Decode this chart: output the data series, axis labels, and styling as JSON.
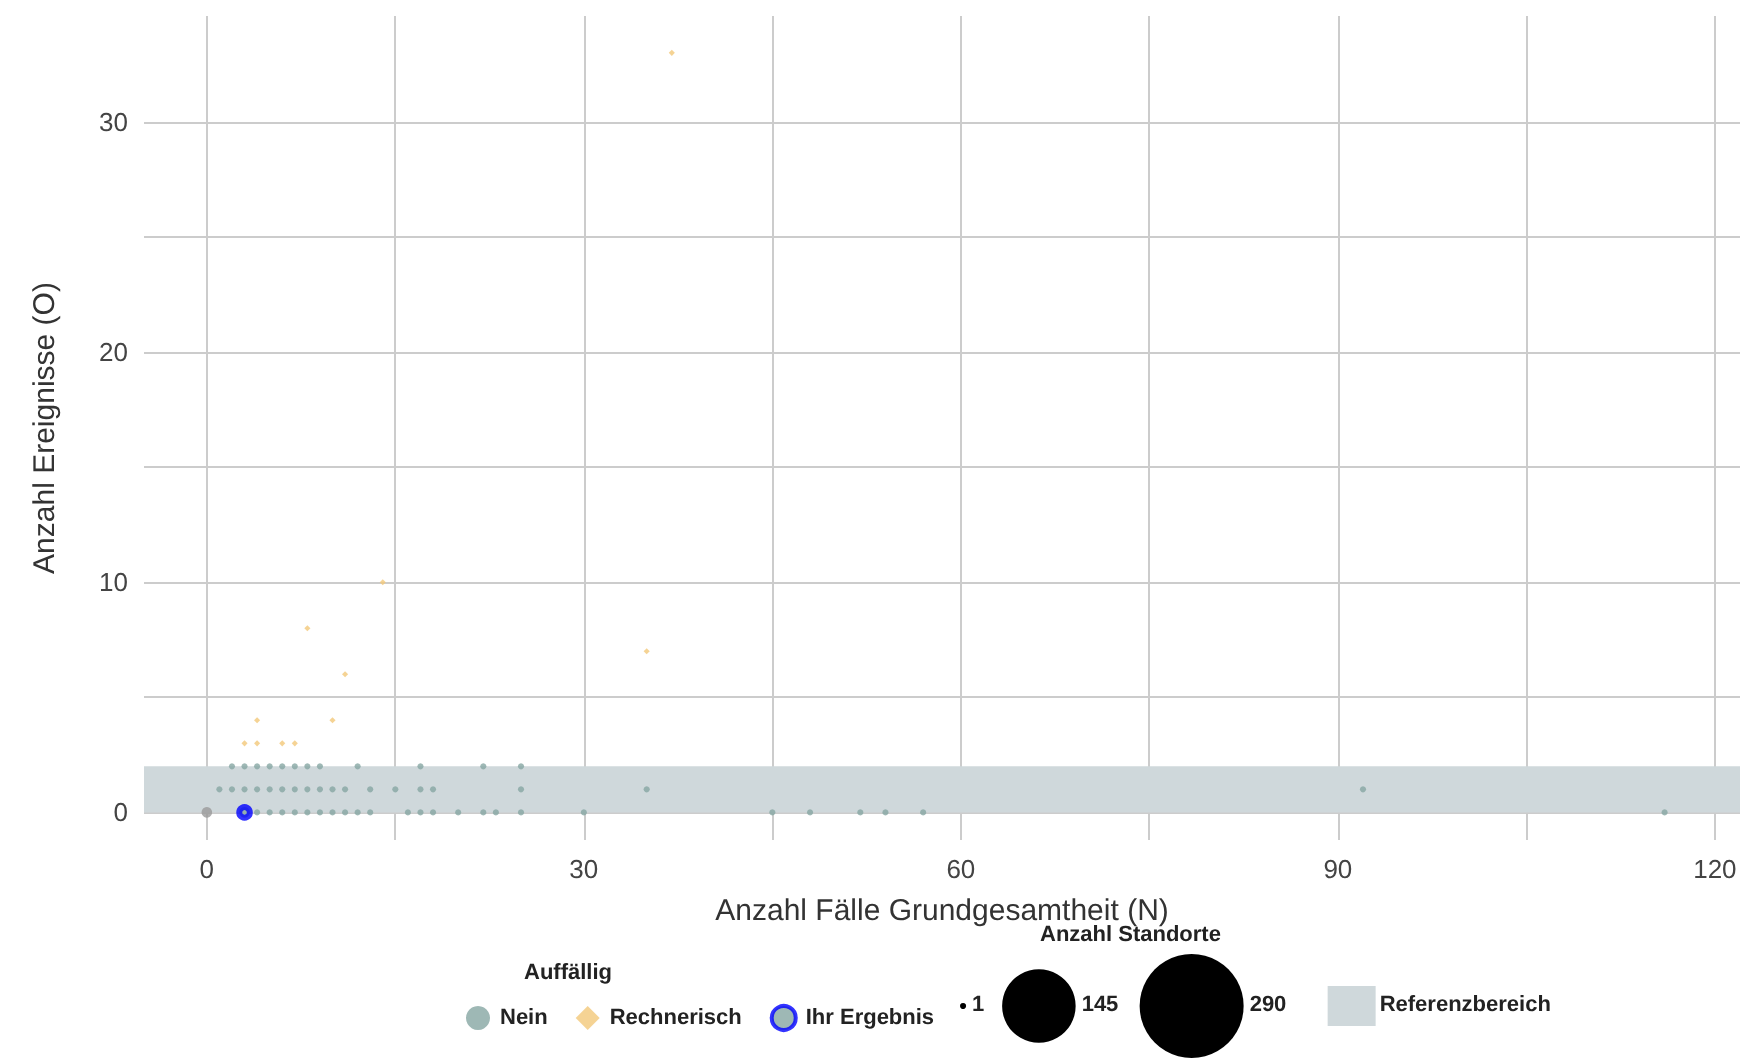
{
  "chart_data": {
    "type": "bubble",
    "xlabel": "Anzahl Fälle Grundgesamtheit (N)",
    "ylabel": "Anzahl Ereignisse (O)",
    "legend_title": "Auffällig",
    "annotations": [
      "Anzahl Standorte"
    ],
    "size_legend": [
      1,
      145,
      290
    ],
    "xlim": [
      -5,
      122
    ],
    "xticks": [
      0,
      {
        "value": 15,
        "label": null
      },
      30,
      {
        "value": 45,
        "label": null
      },
      60,
      {
        "value": 75,
        "label": null
      },
      90,
      {
        "value": 105,
        "label": null
      },
      120
    ],
    "ylim": [
      -1.2,
      34.6
    ],
    "yticks": [
      0,
      {
        "value": 5,
        "label": null
      },
      10,
      {
        "value": 15,
        "label": null
      },
      20,
      {
        "value": 25,
        "label": null
      },
      30
    ],
    "grid": true,
    "legend": "bottom",
    "bands": [
      {
        "axis": "y",
        "from": 0,
        "to": 2,
        "label": "Referenzbereich",
        "color": "#cfd8db"
      }
    ],
    "series": [
      {
        "name": "Nein",
        "color": "#86a6a2",
        "marker": "circle",
        "x": [
          0,
          4,
          5,
          6,
          7,
          8,
          9,
          10,
          11,
          12,
          13,
          16,
          17,
          18,
          20,
          22,
          23,
          25,
          30,
          45,
          48,
          52,
          54,
          57,
          116,
          1,
          2,
          3,
          4,
          5,
          6,
          7,
          8,
          9,
          10,
          11,
          13,
          15,
          17,
          18,
          25,
          35,
          92,
          2,
          3,
          4,
          5,
          6,
          7,
          8,
          9,
          12,
          17,
          22,
          25
        ],
        "values": [
          0,
          0,
          0,
          0,
          0,
          0,
          0,
          0,
          0,
          0,
          0,
          0,
          0,
          0,
          0,
          0,
          0,
          0,
          0,
          0,
          0,
          0,
          0,
          0,
          0,
          1,
          1,
          1,
          1,
          1,
          1,
          1,
          1,
          1,
          1,
          1,
          1,
          1,
          1,
          1,
          1,
          1,
          1,
          2,
          2,
          2,
          2,
          2,
          2,
          2,
          2,
          2,
          2,
          2,
          2
        ],
        "sizes": [
          3,
          1,
          1,
          1,
          1,
          1,
          1,
          1,
          1,
          1,
          1,
          1,
          1,
          1,
          1,
          1,
          1,
          1,
          1,
          1,
          1,
          1,
          1,
          1,
          1,
          1,
          1,
          1,
          1,
          1,
          1,
          1,
          1,
          1,
          1,
          1,
          1,
          1,
          1,
          1,
          1,
          1,
          1,
          1,
          1,
          1,
          1,
          1,
          1,
          1,
          1,
          1,
          1,
          1,
          1
        ],
        "colors": [
          "#9a9a9a",
          "#86a6a2",
          "#86a6a2",
          "#86a6a2",
          "#86a6a2",
          "#86a6a2",
          "#86a6a2",
          "#86a6a2",
          "#86a6a2",
          "#86a6a2",
          "#86a6a2",
          "#86a6a2",
          "#86a6a2",
          "#86a6a2",
          "#86a6a2",
          "#86a6a2",
          "#86a6a2",
          "#86a6a2",
          "#86a6a2",
          "#86a6a2",
          "#86a6a2",
          "#86a6a2",
          "#86a6a2",
          "#86a6a2",
          "#86a6a2",
          "#86a6a2",
          "#86a6a2",
          "#86a6a2",
          "#86a6a2",
          "#86a6a2",
          "#86a6a2",
          "#86a6a2",
          "#86a6a2",
          "#86a6a2",
          "#86a6a2",
          "#86a6a2",
          "#86a6a2",
          "#86a6a2",
          "#86a6a2",
          "#86a6a2",
          "#86a6a2",
          "#86a6a2",
          "#86a6a2",
          "#86a6a2",
          "#86a6a2",
          "#86a6a2",
          "#86a6a2",
          "#86a6a2",
          "#86a6a2",
          "#86a6a2",
          "#86a6a2",
          "#86a6a2",
          "#86a6a2",
          "#86a6a2",
          "#86a6a2"
        ]
      },
      {
        "name": "Rechnerisch",
        "color": "#f2c879",
        "marker": "diamond",
        "x": [
          37,
          14,
          8,
          11,
          35,
          4,
          10,
          3,
          4,
          6,
          7
        ],
        "values": [
          33,
          10,
          8,
          6,
          7,
          4,
          4,
          3,
          3,
          3,
          3
        ],
        "sizes": [
          1,
          1,
          1,
          1,
          1,
          1,
          1,
          1,
          1,
          1,
          1
        ]
      },
      {
        "name": "Ihr Ergebnis",
        "color": "#0000ff",
        "marker": "circle",
        "x": [
          3
        ],
        "values": [
          0
        ],
        "sizes": [
          3
        ]
      }
    ]
  }
}
